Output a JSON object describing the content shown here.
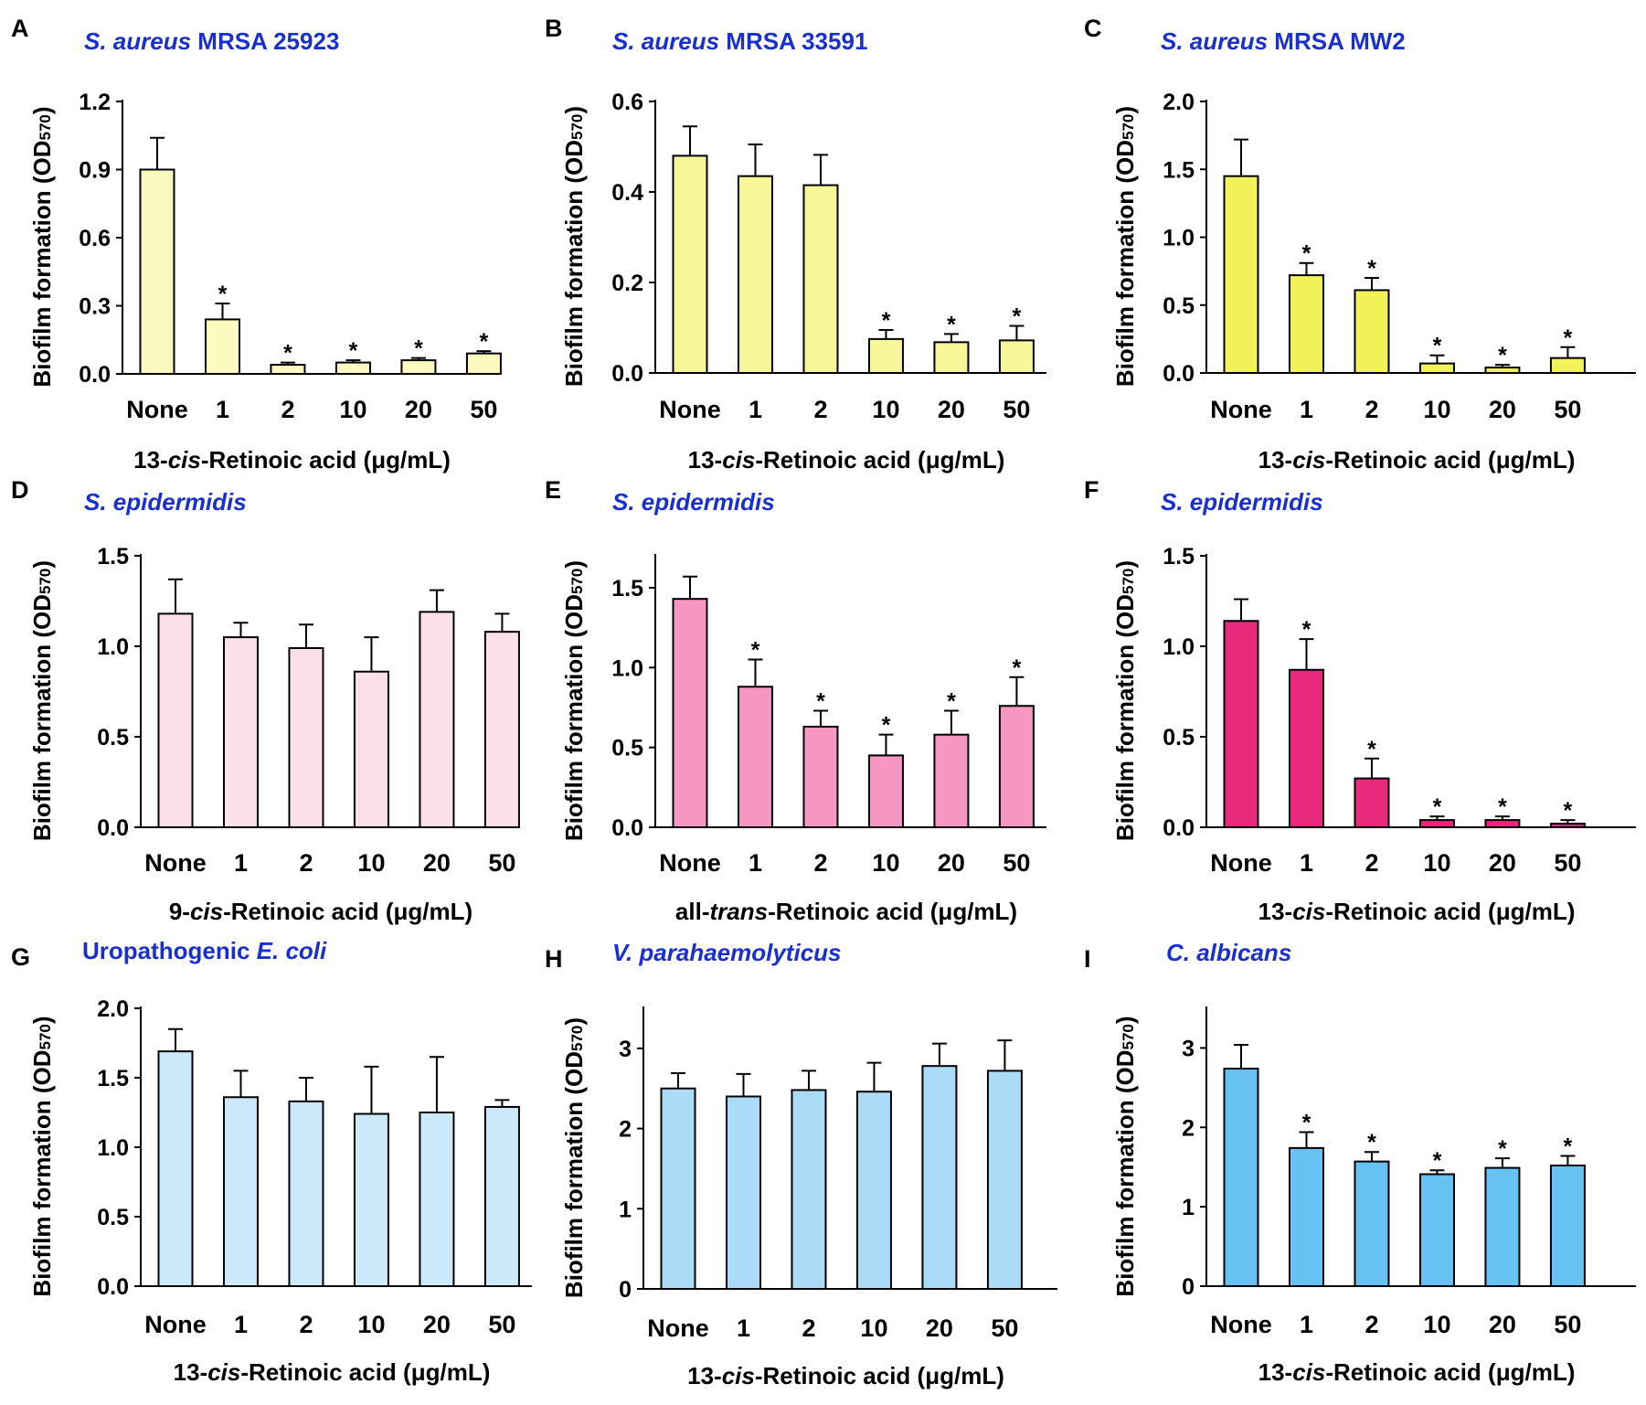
{
  "figure": {
    "ylabel_main": "Biofilm formation (OD",
    "ylabel_sub": "570",
    "ylabel_close": ")",
    "title_color": "#1a2fd0",
    "sig_marker": "*"
  },
  "chart_data": [
    {
      "panel": "A",
      "type": "bar",
      "title": [
        {
          "text": "S. aureus",
          "italic": true
        },
        {
          "text": " MRSA 25923",
          "italic": false
        }
      ],
      "xlabel": [
        {
          "text": "13-",
          "italic": false
        },
        {
          "text": "cis",
          "italic": true
        },
        {
          "text": "-Retinoic acid (μg/mL)",
          "italic": false
        }
      ],
      "ylabel": "Biofilm formation (OD570)",
      "categories": [
        "None",
        "1",
        "2",
        "10",
        "20",
        "50"
      ],
      "values": [
        0.9,
        0.24,
        0.04,
        0.05,
        0.06,
        0.09
      ],
      "errors": [
        0.14,
        0.07,
        0.01,
        0.01,
        0.01,
        0.01
      ],
      "significant": [
        false,
        true,
        true,
        true,
        true,
        true
      ],
      "ylim": [
        0,
        1.2
      ],
      "yticks": [
        "0.0",
        "0.3",
        "0.6",
        "0.9",
        "1.2"
      ],
      "color": "#fbfbbf"
    },
    {
      "panel": "B",
      "type": "bar",
      "title": [
        {
          "text": "S. aureus",
          "italic": true
        },
        {
          "text": " MRSA 33591",
          "italic": false
        }
      ],
      "xlabel": [
        {
          "text": "13-",
          "italic": false
        },
        {
          "text": "cis",
          "italic": true
        },
        {
          "text": "-Retinoic acid (μg/mL)",
          "italic": false
        }
      ],
      "ylabel": "Biofilm formation (OD570)",
      "categories": [
        "None",
        "1",
        "2",
        "10",
        "20",
        "50"
      ],
      "values": [
        0.48,
        0.435,
        0.415,
        0.075,
        0.068,
        0.072
      ],
      "errors": [
        0.065,
        0.07,
        0.067,
        0.02,
        0.018,
        0.032
      ],
      "significant": [
        false,
        false,
        false,
        true,
        true,
        true
      ],
      "ylim": [
        0,
        0.6
      ],
      "yticks": [
        "0.0",
        "0.2",
        "0.4",
        "0.6"
      ],
      "color": "#f7f79a"
    },
    {
      "panel": "C",
      "type": "bar",
      "title": [
        {
          "text": "S. aureus",
          "italic": true
        },
        {
          "text": " MRSA MW2",
          "italic": false
        }
      ],
      "xlabel": [
        {
          "text": "13-",
          "italic": false
        },
        {
          "text": "cis",
          "italic": true
        },
        {
          "text": "-Retinoic acid (μg/mL)",
          "italic": false
        }
      ],
      "ylabel": "Biofilm formation (OD570)",
      "categories": [
        "None",
        "1",
        "2",
        "10",
        "20",
        "50"
      ],
      "values": [
        1.45,
        0.72,
        0.61,
        0.07,
        0.04,
        0.11
      ],
      "errors": [
        0.27,
        0.09,
        0.09,
        0.06,
        0.02,
        0.08
      ],
      "significant": [
        false,
        true,
        true,
        true,
        true,
        true
      ],
      "ylim": [
        0,
        2.0
      ],
      "yticks": [
        "0.0",
        "0.5",
        "1.0",
        "1.5",
        "2.0"
      ],
      "color": "#f1f15a"
    },
    {
      "panel": "D",
      "type": "bar",
      "title": [
        {
          "text": "S. epidermidis",
          "italic": true
        }
      ],
      "xlabel": [
        {
          "text": "9-",
          "italic": false
        },
        {
          "text": "cis",
          "italic": true
        },
        {
          "text": "-Retinoic acid (μg/mL)",
          "italic": false
        }
      ],
      "ylabel": "Biofilm formation (OD570)",
      "categories": [
        "None",
        "1",
        "2",
        "10",
        "20",
        "50"
      ],
      "values": [
        1.18,
        1.05,
        0.99,
        0.86,
        1.19,
        1.08
      ],
      "errors": [
        0.19,
        0.08,
        0.13,
        0.19,
        0.12,
        0.1
      ],
      "significant": [
        false,
        false,
        false,
        false,
        false,
        false
      ],
      "ylim": [
        0,
        1.5
      ],
      "yticks": [
        "0.0",
        "0.5",
        "1.0",
        "1.5"
      ],
      "color": "#fbe0ea"
    },
    {
      "panel": "E",
      "type": "bar",
      "title": [
        {
          "text": "S. epidermidis",
          "italic": true
        }
      ],
      "xlabel": [
        {
          "text": "all-",
          "italic": false
        },
        {
          "text": "trans",
          "italic": true
        },
        {
          "text": "-Retinoic acid (μg/mL)",
          "italic": false
        }
      ],
      "ylabel": "Biofilm formation (OD570)",
      "categories": [
        "None",
        "1",
        "2",
        "10",
        "20",
        "50"
      ],
      "values": [
        1.43,
        0.88,
        0.63,
        0.45,
        0.58,
        0.76
      ],
      "errors": [
        0.14,
        0.17,
        0.1,
        0.13,
        0.15,
        0.18
      ],
      "significant": [
        false,
        true,
        true,
        true,
        true,
        true
      ],
      "ylim": [
        0,
        1.7
      ],
      "yticks": [
        "0.0",
        "0.5",
        "1.0",
        "1.5"
      ],
      "color": "#f596c3"
    },
    {
      "panel": "F",
      "type": "bar",
      "title": [
        {
          "text": "S. epidermidis",
          "italic": true
        }
      ],
      "xlabel": [
        {
          "text": "13-",
          "italic": false
        },
        {
          "text": "cis",
          "italic": true
        },
        {
          "text": "-Retinoic acid (μg/mL)",
          "italic": false
        }
      ],
      "ylabel": "Biofilm formation (OD570)",
      "categories": [
        "None",
        "1",
        "2",
        "10",
        "20",
        "50"
      ],
      "values": [
        1.14,
        0.87,
        0.27,
        0.04,
        0.04,
        0.02
      ],
      "errors": [
        0.12,
        0.17,
        0.11,
        0.02,
        0.02,
        0.02
      ],
      "significant": [
        false,
        true,
        true,
        true,
        true,
        true
      ],
      "ylim": [
        0,
        1.5
      ],
      "yticks": [
        "0.0",
        "0.5",
        "1.0",
        "1.5"
      ],
      "color": "#e8297b"
    },
    {
      "panel": "G",
      "type": "bar",
      "title": [
        {
          "text": "Uropathogenic ",
          "italic": false
        },
        {
          "text": "E. coli",
          "italic": true
        }
      ],
      "xlabel": [
        {
          "text": "13-",
          "italic": false
        },
        {
          "text": "cis",
          "italic": true
        },
        {
          "text": "-Retinoic acid (μg/mL)",
          "italic": false
        }
      ],
      "ylabel": "Biofilm formation (OD570)",
      "categories": [
        "None",
        "1",
        "2",
        "10",
        "20",
        "50"
      ],
      "values": [
        1.69,
        1.36,
        1.33,
        1.24,
        1.25,
        1.29
      ],
      "errors": [
        0.16,
        0.19,
        0.17,
        0.34,
        0.4,
        0.05
      ],
      "significant": [
        false,
        false,
        false,
        false,
        false,
        false
      ],
      "ylim": [
        0,
        2.0
      ],
      "yticks": [
        "0.0",
        "0.5",
        "1.0",
        "1.5",
        "2.0"
      ],
      "color": "#cbe9fb"
    },
    {
      "panel": "H",
      "type": "bar",
      "title": [
        {
          "text": "V. parahaemolyticus",
          "italic": true
        }
      ],
      "xlabel": [
        {
          "text": "13-",
          "italic": false
        },
        {
          "text": "cis",
          "italic": true
        },
        {
          "text": "-Retinoic acid (μg/mL)",
          "italic": false
        }
      ],
      "ylabel": "Biofilm formation (OD570)",
      "categories": [
        "None",
        "1",
        "2",
        "10",
        "20",
        "50"
      ],
      "values": [
        2.5,
        2.4,
        2.48,
        2.46,
        2.78,
        2.72
      ],
      "errors": [
        0.19,
        0.28,
        0.24,
        0.36,
        0.28,
        0.38
      ],
      "significant": [
        false,
        false,
        false,
        false,
        false,
        false
      ],
      "ylim": [
        0,
        3.5
      ],
      "yticks": [
        "0",
        "1",
        "2",
        "3"
      ],
      "color": "#aadcf8"
    },
    {
      "panel": "I",
      "type": "bar",
      "title": [
        {
          "text": "C. albicans",
          "italic": true
        }
      ],
      "xlabel": [
        {
          "text": "13-",
          "italic": false
        },
        {
          "text": "cis",
          "italic": true
        },
        {
          "text": "-Retinoic acid (μg/mL)",
          "italic": false
        }
      ],
      "ylabel": "Biofilm formation (OD570)",
      "categories": [
        "None",
        "1",
        "2",
        "10",
        "20",
        "50"
      ],
      "values": [
        2.74,
        1.74,
        1.57,
        1.41,
        1.49,
        1.52
      ],
      "errors": [
        0.3,
        0.2,
        0.12,
        0.05,
        0.12,
        0.12
      ],
      "significant": [
        false,
        true,
        true,
        true,
        true,
        true
      ],
      "ylim": [
        0,
        3.5
      ],
      "yticks": [
        "0",
        "1",
        "2",
        "3"
      ],
      "color": "#67c1f3"
    }
  ]
}
